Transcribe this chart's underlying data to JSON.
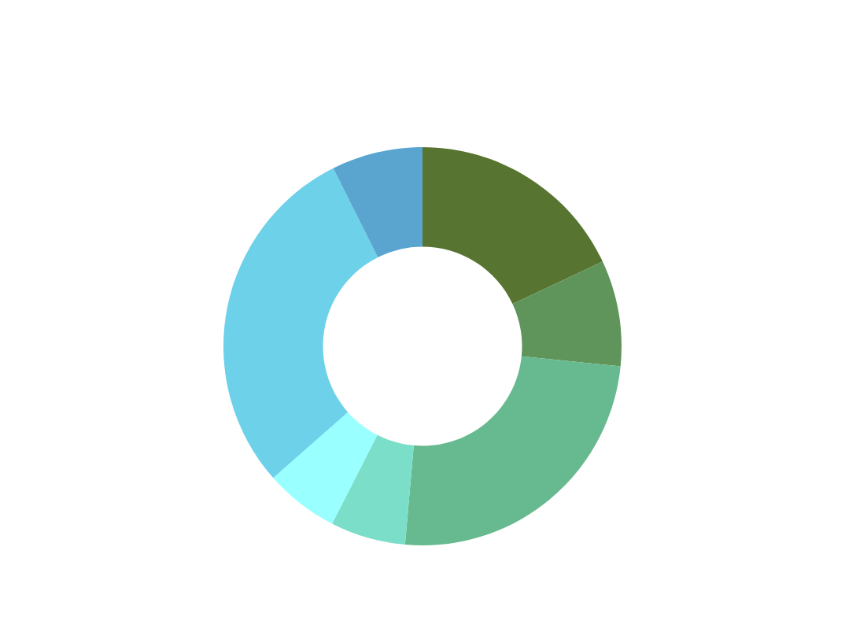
{
  "chart_data": {
    "type": "donut",
    "categories": [
      null,
      null,
      null,
      null,
      null,
      null,
      null
    ],
    "values": [
      18.0,
      8.6,
      24.8,
      6.1,
      6.0,
      29.1,
      7.4
    ],
    "colors": [
      "#587431",
      "#5f955a",
      "#67ba8f",
      "#7adec9",
      "#99ffff",
      "#6dd1e9",
      "#59a5d0"
    ]
  }
}
